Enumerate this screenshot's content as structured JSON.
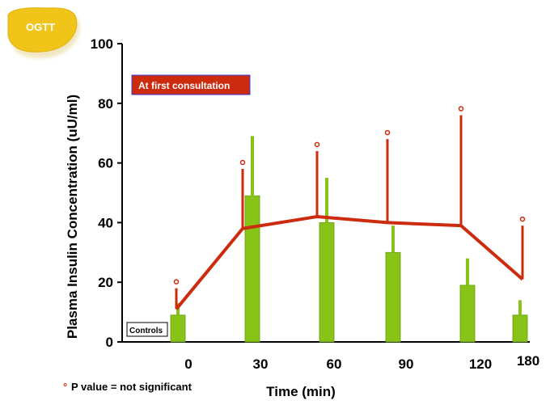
{
  "badge": {
    "label": "OGTT"
  },
  "chart_data": {
    "type": "bar",
    "title": "",
    "xlabel": "Time (min)",
    "ylabel": "Plasma Insulin Concentration (uU/ml)",
    "ylim": [
      0,
      100
    ],
    "y_ticks": [
      0,
      20,
      40,
      60,
      80,
      100
    ],
    "x_ticks": [
      "0",
      "30",
      "60",
      "90",
      "120",
      "180"
    ],
    "series": [
      {
        "name": "Controls",
        "kind": "bar",
        "color": "#88c417",
        "values": [
          9,
          49,
          40,
          30,
          19,
          9
        ],
        "error_upper": [
          13,
          69,
          55,
          39,
          28,
          14
        ]
      },
      {
        "name": "At first consultation",
        "kind": "line",
        "color": "#cc2b0e",
        "values": [
          11,
          38,
          42,
          40,
          39,
          21
        ],
        "error_upper": [
          18,
          58,
          64,
          68,
          76,
          39
        ]
      }
    ],
    "annotations": {
      "marker": "°",
      "footnote": "P value = not significant"
    }
  }
}
